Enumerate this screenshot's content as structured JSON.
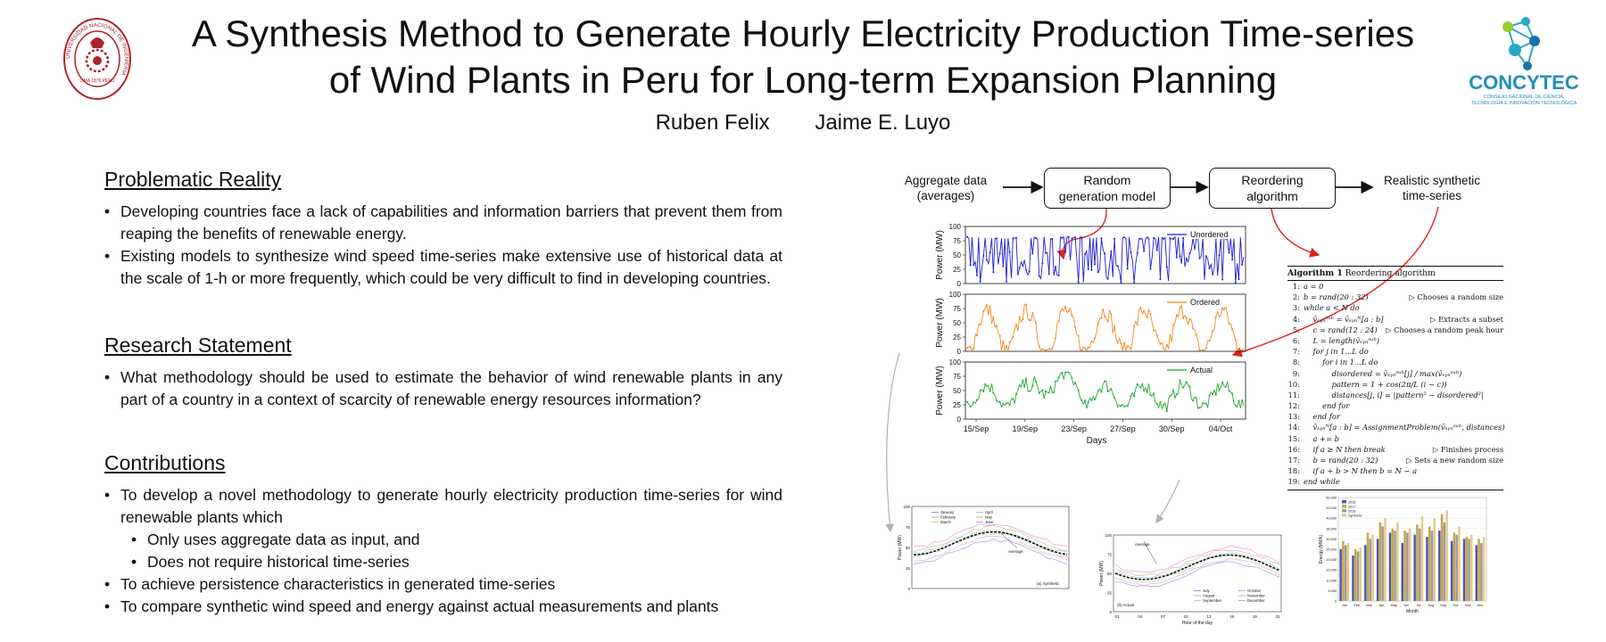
{
  "header": {
    "title_line1": "A Synthesis Method to Generate Hourly Electricity Production Time-series",
    "title_line2": "of Wind Plants in Peru for Long-term Expansion Planning",
    "author1": "Ruben Felix",
    "author2": "Jaime E. Luyo",
    "logo_left_ring_text": "UNIVERSIDAD NACIONAL DE INGENIERIA",
    "logo_left_year": "LIMA 1876 PERU",
    "logo_right_name": "CONCYTEC",
    "logo_right_sub1": "CONSEJO NACIONAL DE CIENCIA,",
    "logo_right_sub2": "TECNOLOGÍA E INNOVACIÓN TECNOLÓGICA"
  },
  "sections": {
    "reality": {
      "heading": "Problematic Reality",
      "bullets": [
        "Developing countries face a lack of capabilities and information barriers that prevent them from reaping the benefits of renewable energy.",
        "Existing models to synthesize wind speed time-series make extensive use of historical data at the scale of 1-h or more frequently, which could be very difficult to find in developing countries."
      ]
    },
    "statement": {
      "heading": "Research Statement",
      "bullets": [
        "What methodology should be used to estimate the behavior of wind renewable plants in any part of a country in a context of scarcity of renewable energy resources information?"
      ]
    },
    "contributions": {
      "heading": "Contributions",
      "bullet1": "To develop a novel methodology to generate hourly electricity production time-series for wind renewable plants which",
      "sub1": "Only uses aggregate data as input, and",
      "sub2": "Does not require historical time-series",
      "bullet2": "To achieve persistence characteristics in generated time-series",
      "bullet3": "To compare synthetic wind speed and energy against actual measurements and plants"
    }
  },
  "flow": {
    "input": [
      "Aggregate data",
      "(averages)"
    ],
    "box1": [
      "Random",
      "generation model"
    ],
    "box2": [
      "Reordering",
      "algorithm"
    ],
    "output": [
      "Realistic synthetic",
      "time-series"
    ]
  },
  "algorithm": {
    "title_bold": "Algorithm 1",
    "title": "Reordering algorithm",
    "lines": [
      {
        "n": "1:",
        "code": "a = 0",
        "comment": ""
      },
      {
        "n": "2:",
        "code": "b = rand(20 : 32)",
        "comment": "▷ Chooses a random size"
      },
      {
        "n": "3:",
        "code": "while a < N do",
        "comment": ""
      },
      {
        "n": "4:",
        "code": "    v̄ₛᵧₙˢᵘᵇ = v̄ₛᵧₙᴺ[a : b]",
        "comment": "▷ Extracts a subset"
      },
      {
        "n": "5:",
        "code": "    c = rand(12 : 24)",
        "comment": "▷ Chooses a random peak hour"
      },
      {
        "n": "6:",
        "code": "    L = length(v̄ₛᵧₙˢᵘᵇ)",
        "comment": ""
      },
      {
        "n": "7:",
        "code": "    for j in 1...L do",
        "comment": ""
      },
      {
        "n": "8:",
        "code": "        for i in 1...L do",
        "comment": ""
      },
      {
        "n": "9:",
        "code": "            disordered = v̄ₛᵧₙˢᵘᵇ[j] / max(v̄ₛᵧₙˢᵘᵇ)",
        "comment": ""
      },
      {
        "n": "10:",
        "code": "            pattern = 1 + cos(2π/L (i − c))",
        "comment": ""
      },
      {
        "n": "11:",
        "code": "            distances[j, i] = |pattern² − disordered²|",
        "comment": ""
      },
      {
        "n": "12:",
        "code": "        end for",
        "comment": ""
      },
      {
        "n": "13:",
        "code": "    end for",
        "comment": ""
      },
      {
        "n": "14:",
        "code": "    v̄ₛᵧₙᴺ[a : b] = AssignmentProblem(v̄ₛᵧₙˢᵘᵇ, distances)",
        "comment": ""
      },
      {
        "n": "15:",
        "code": "    a += b",
        "comment": ""
      },
      {
        "n": "16:",
        "code": "    if a ≥ N then break",
        "comment": "▷ Finishes process"
      },
      {
        "n": "17:",
        "code": "    b = rand(20 : 32)",
        "comment": "▷ Sets a new random size"
      },
      {
        "n": "18:",
        "code": "    if a + b > N then b = N − a",
        "comment": ""
      },
      {
        "n": "19:",
        "code": "end while",
        "comment": ""
      }
    ]
  },
  "chart_data": [
    {
      "type": "line",
      "ylabel": "Power (MW)",
      "xlabel": "Days",
      "ylim": [
        0,
        100
      ],
      "yticks": [
        0,
        25,
        50,
        75,
        100
      ],
      "xticks": [
        "15/Sep",
        "19/Sep",
        "23/Sep",
        "27/Sep",
        "30/Sep",
        "04/Oct"
      ],
      "panels": [
        {
          "name": "Unordered",
          "color": "#1f1fd0"
        },
        {
          "name": "Ordered",
          "color": "#f28a1e"
        },
        {
          "name": "Actual",
          "color": "#22aa33"
        }
      ]
    },
    {
      "type": "line",
      "caption": "(a) Synthetic",
      "ylabel": "Power (MW)",
      "ylim": [
        0,
        100
      ],
      "yticks": [
        0,
        25,
        50,
        75,
        100
      ],
      "legend": [
        "January",
        "February",
        "March",
        "April",
        "May",
        "June"
      ],
      "annotation": "Average"
    },
    {
      "type": "line",
      "caption": "(b) Actual",
      "ylabel": "Power (MW)",
      "xlabel": "Hour of the day",
      "ylim": [
        0,
        100
      ],
      "yticks": [
        0,
        25,
        50,
        75,
        100
      ],
      "xticks": [
        "01",
        "04",
        "07",
        "10",
        "13",
        "16",
        "19",
        "22"
      ],
      "legend": [
        "July",
        "August",
        "September",
        "October",
        "November",
        "December"
      ],
      "annotation": "Average"
    },
    {
      "type": "bar",
      "ylabel": "Energy (MWh)",
      "xlabel": "Month",
      "categories": [
        "Jan",
        "Feb",
        "Mar",
        "Apr",
        "May",
        "Jun",
        "Jul",
        "Aug",
        "Sep",
        "Oct",
        "Nov",
        "Dec"
      ],
      "yticks": [
        "0",
        "5,000",
        "10,000",
        "15,000",
        "20,000",
        "25,000",
        "30,000",
        "35,000",
        "40,000",
        "45,000",
        "50,000"
      ],
      "ylim": [
        0,
        50000
      ],
      "series": [
        {
          "name": "2016",
          "color": "#4a5aa8",
          "values": [
            25000,
            22000,
            27000,
            30000,
            33000,
            28000,
            32000,
            31000,
            34000,
            29000,
            30000,
            27000
          ]
        },
        {
          "name": "2017",
          "color": "#c9a34a",
          "values": [
            29000,
            25000,
            33000,
            38000,
            35000,
            34000,
            37000,
            36000,
            42000,
            33000,
            31000,
            30000
          ]
        },
        {
          "name": "2018",
          "color": "#9b9b9b",
          "values": [
            27000,
            24000,
            30000,
            36000,
            34000,
            33000,
            35000,
            34000,
            38000,
            32000,
            30000,
            28000
          ]
        },
        {
          "name": "Synthetic",
          "color": "#e7c98a",
          "values": [
            28000,
            26000,
            32000,
            40000,
            38000,
            35000,
            41000,
            40000,
            44000,
            36000,
            32000,
            31000
          ]
        }
      ]
    }
  ]
}
